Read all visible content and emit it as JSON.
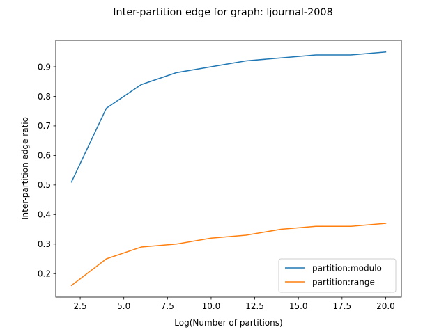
{
  "chart_data": {
    "type": "line",
    "title": "Inter-partition edge for graph: ljournal-2008",
    "xlabel": "Log(Number of partitions)",
    "ylabel": "Inter-partition edge ratio",
    "x": [
      2,
      4,
      6,
      8,
      10,
      12,
      14,
      16,
      18,
      20
    ],
    "xlim": [
      1.1,
      20.9
    ],
    "ylim": [
      0.1205,
      0.9895
    ],
    "xticks": [
      2.5,
      5.0,
      7.5,
      10.0,
      12.5,
      15.0,
      17.5,
      20.0
    ],
    "xtick_labels": [
      "2.5",
      "5.0",
      "7.5",
      "10.0",
      "12.5",
      "15.0",
      "17.5",
      "20.0"
    ],
    "yticks": [
      0.2,
      0.3,
      0.4,
      0.5,
      0.6,
      0.7,
      0.8,
      0.9
    ],
    "ytick_labels": [
      "0.2",
      "0.3",
      "0.4",
      "0.5",
      "0.6",
      "0.7",
      "0.8",
      "0.9"
    ],
    "grid": false,
    "legend": "lower-right",
    "series": [
      {
        "name": "partition:modulo",
        "color": "#1f77b4",
        "values": [
          0.51,
          0.76,
          0.84,
          0.88,
          0.9,
          0.92,
          0.93,
          0.94,
          0.94,
          0.95
        ]
      },
      {
        "name": "partition:range",
        "color": "#ff7f0e",
        "values": [
          0.16,
          0.25,
          0.29,
          0.3,
          0.32,
          0.33,
          0.35,
          0.36,
          0.36,
          0.37
        ]
      }
    ]
  }
}
